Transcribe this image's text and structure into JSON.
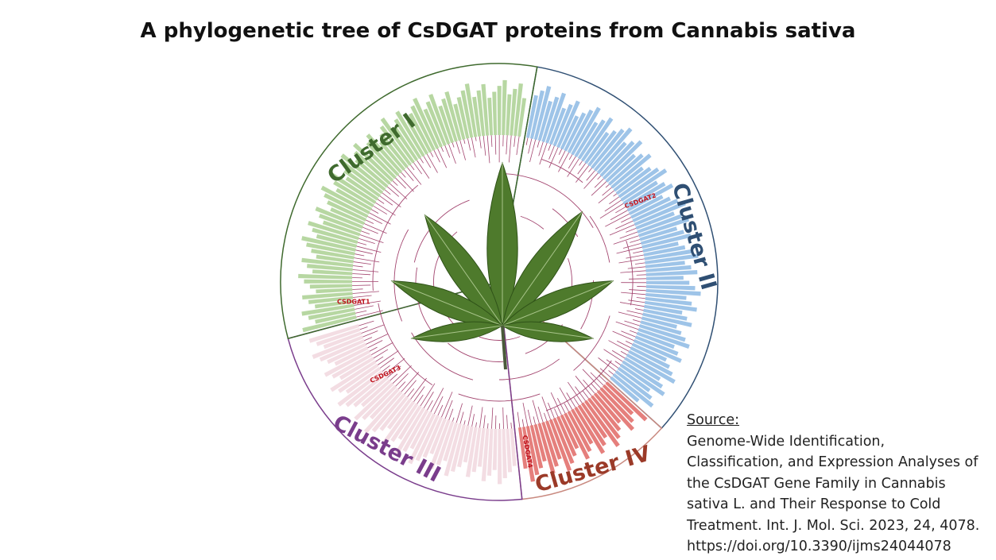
{
  "header": {
    "title": "A phylogenetic tree of CsDGAT proteins from Cannabis sativa"
  },
  "clusters": [
    {
      "label": "Cluster I"
    },
    {
      "label": "Cluster II"
    },
    {
      "label": "Cluster III"
    },
    {
      "label": "Cluster IV"
    }
  ],
  "genes": [
    {
      "label": "CSDGAT1"
    },
    {
      "label": "CSDGAT2"
    },
    {
      "label": "CSDGAT3"
    },
    {
      "label": "CSDGAT4"
    }
  ],
  "source": {
    "label": "Source:",
    "lines": [
      "Genome-Wide Identification,",
      "Classification, and Expression Analyses of",
      "the CsDGAT Gene Family in Cannabis",
      "sativa L. and Their Response to Cold",
      "Treatment. Int. J. Mol. Sci. 2023, 24, 4078.",
      "https://doi.org/10.3390/ijms24044078"
    ]
  }
}
